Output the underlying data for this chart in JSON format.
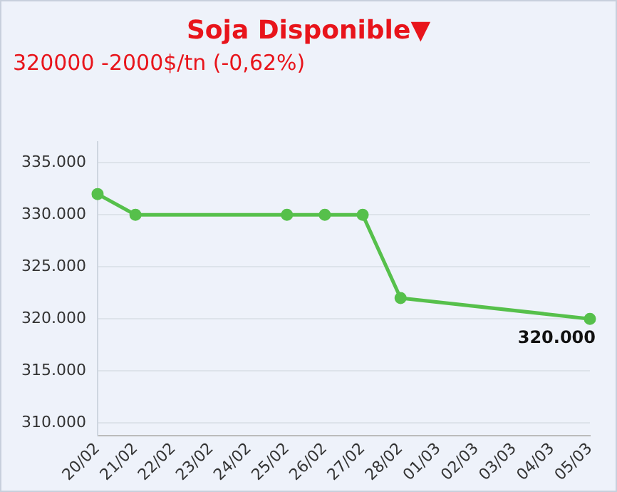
{
  "chart_data": {
    "type": "line",
    "title": "Soja Disponible▼",
    "subtitle": "320000 -2000$/tn (-0,62%)",
    "categories": [
      "20/02",
      "21/02",
      "22/02",
      "23/02",
      "24/02",
      "25/02",
      "26/02",
      "27/02",
      "28/02",
      "01/03",
      "02/03",
      "03/03",
      "04/03",
      "05/03"
    ],
    "series": [
      {
        "color": "#56c04b",
        "values": [
          332000,
          330000,
          null,
          null,
          null,
          330000,
          330000,
          330000,
          322000,
          null,
          null,
          null,
          null,
          320000
        ]
      }
    ],
    "ylim": [
      308800,
      337000
    ],
    "yticks": [
      {
        "value": 310000,
        "label": "310.000"
      },
      {
        "value": 315000,
        "label": "315.000"
      },
      {
        "value": 320000,
        "label": "320.000"
      },
      {
        "value": 325000,
        "label": "325.000"
      },
      {
        "value": 330000,
        "label": "330.000"
      },
      {
        "value": 335000,
        "label": "335.000"
      }
    ],
    "grid": "y",
    "legend": false,
    "marker": "circle",
    "line_style": "solid",
    "annotations": [
      {
        "text": "320.000",
        "x": "05/03",
        "y": 320000
      }
    ]
  }
}
